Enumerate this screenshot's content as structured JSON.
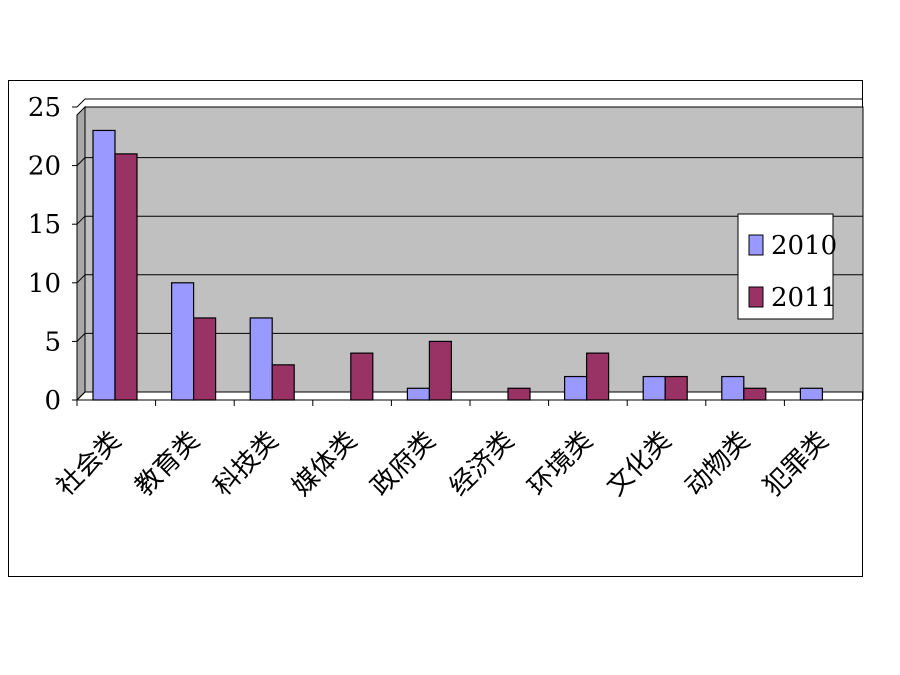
{
  "chart_data": {
    "type": "bar",
    "categories": [
      "社会类",
      "教育类",
      "科技类",
      "媒体类",
      "政府类",
      "经济类",
      "环境类",
      "文化类",
      "动物类",
      "犯罪类"
    ],
    "series": [
      {
        "name": "2010",
        "values": [
          23,
          10,
          7,
          0,
          1,
          0,
          2,
          2,
          2,
          1
        ],
        "color": "#9999ff"
      },
      {
        "name": "2011",
        "values": [
          21,
          7,
          3,
          4,
          5,
          1,
          4,
          2,
          1,
          0
        ],
        "color": "#993366"
      }
    ],
    "yticks": [
      "0",
      "5",
      "10",
      "15",
      "20",
      "25"
    ],
    "ylim": [
      0,
      25
    ],
    "grid": true,
    "plot_background": "#c0c0c0",
    "legend_position": "right"
  }
}
